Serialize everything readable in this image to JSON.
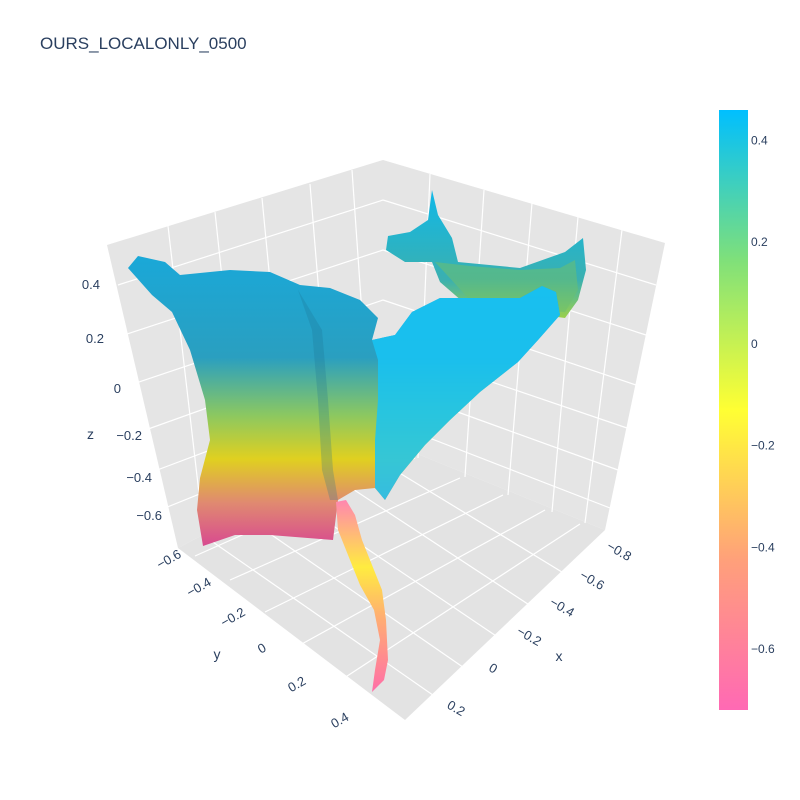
{
  "chart_data": {
    "type": "surface",
    "title": "OURS_LOCALONLY_0500",
    "axes": {
      "x": {
        "label": "x",
        "ticks": [
          "−0.8",
          "−0.6",
          "−0.4",
          "−0.2",
          "0",
          "0.2"
        ]
      },
      "y": {
        "label": "y",
        "ticks": [
          "−0.6",
          "−0.4",
          "−0.2",
          "0",
          "0.2",
          "0.4"
        ]
      },
      "z": {
        "label": "z",
        "ticks": [
          "0.4",
          "0.2",
          "0",
          "−0.2",
          "−0.4",
          "−0.6"
        ]
      }
    },
    "colorbar": {
      "ticks": [
        {
          "label": "0.4",
          "value": 0.4
        },
        {
          "label": "0.2",
          "value": 0.2
        },
        {
          "label": "0",
          "value": 0
        },
        {
          "label": "−0.2",
          "value": -0.2
        },
        {
          "label": "−0.4",
          "value": -0.4
        },
        {
          "label": "−0.6",
          "value": -0.6
        }
      ],
      "range": [
        -0.72,
        0.46
      ],
      "colorscale": [
        "#ff69b4",
        "#ffa07a",
        "#ffff33",
        "#7fe07a",
        "#00bfff"
      ]
    },
    "grid": true,
    "scene_background": "#e5e5e5"
  }
}
